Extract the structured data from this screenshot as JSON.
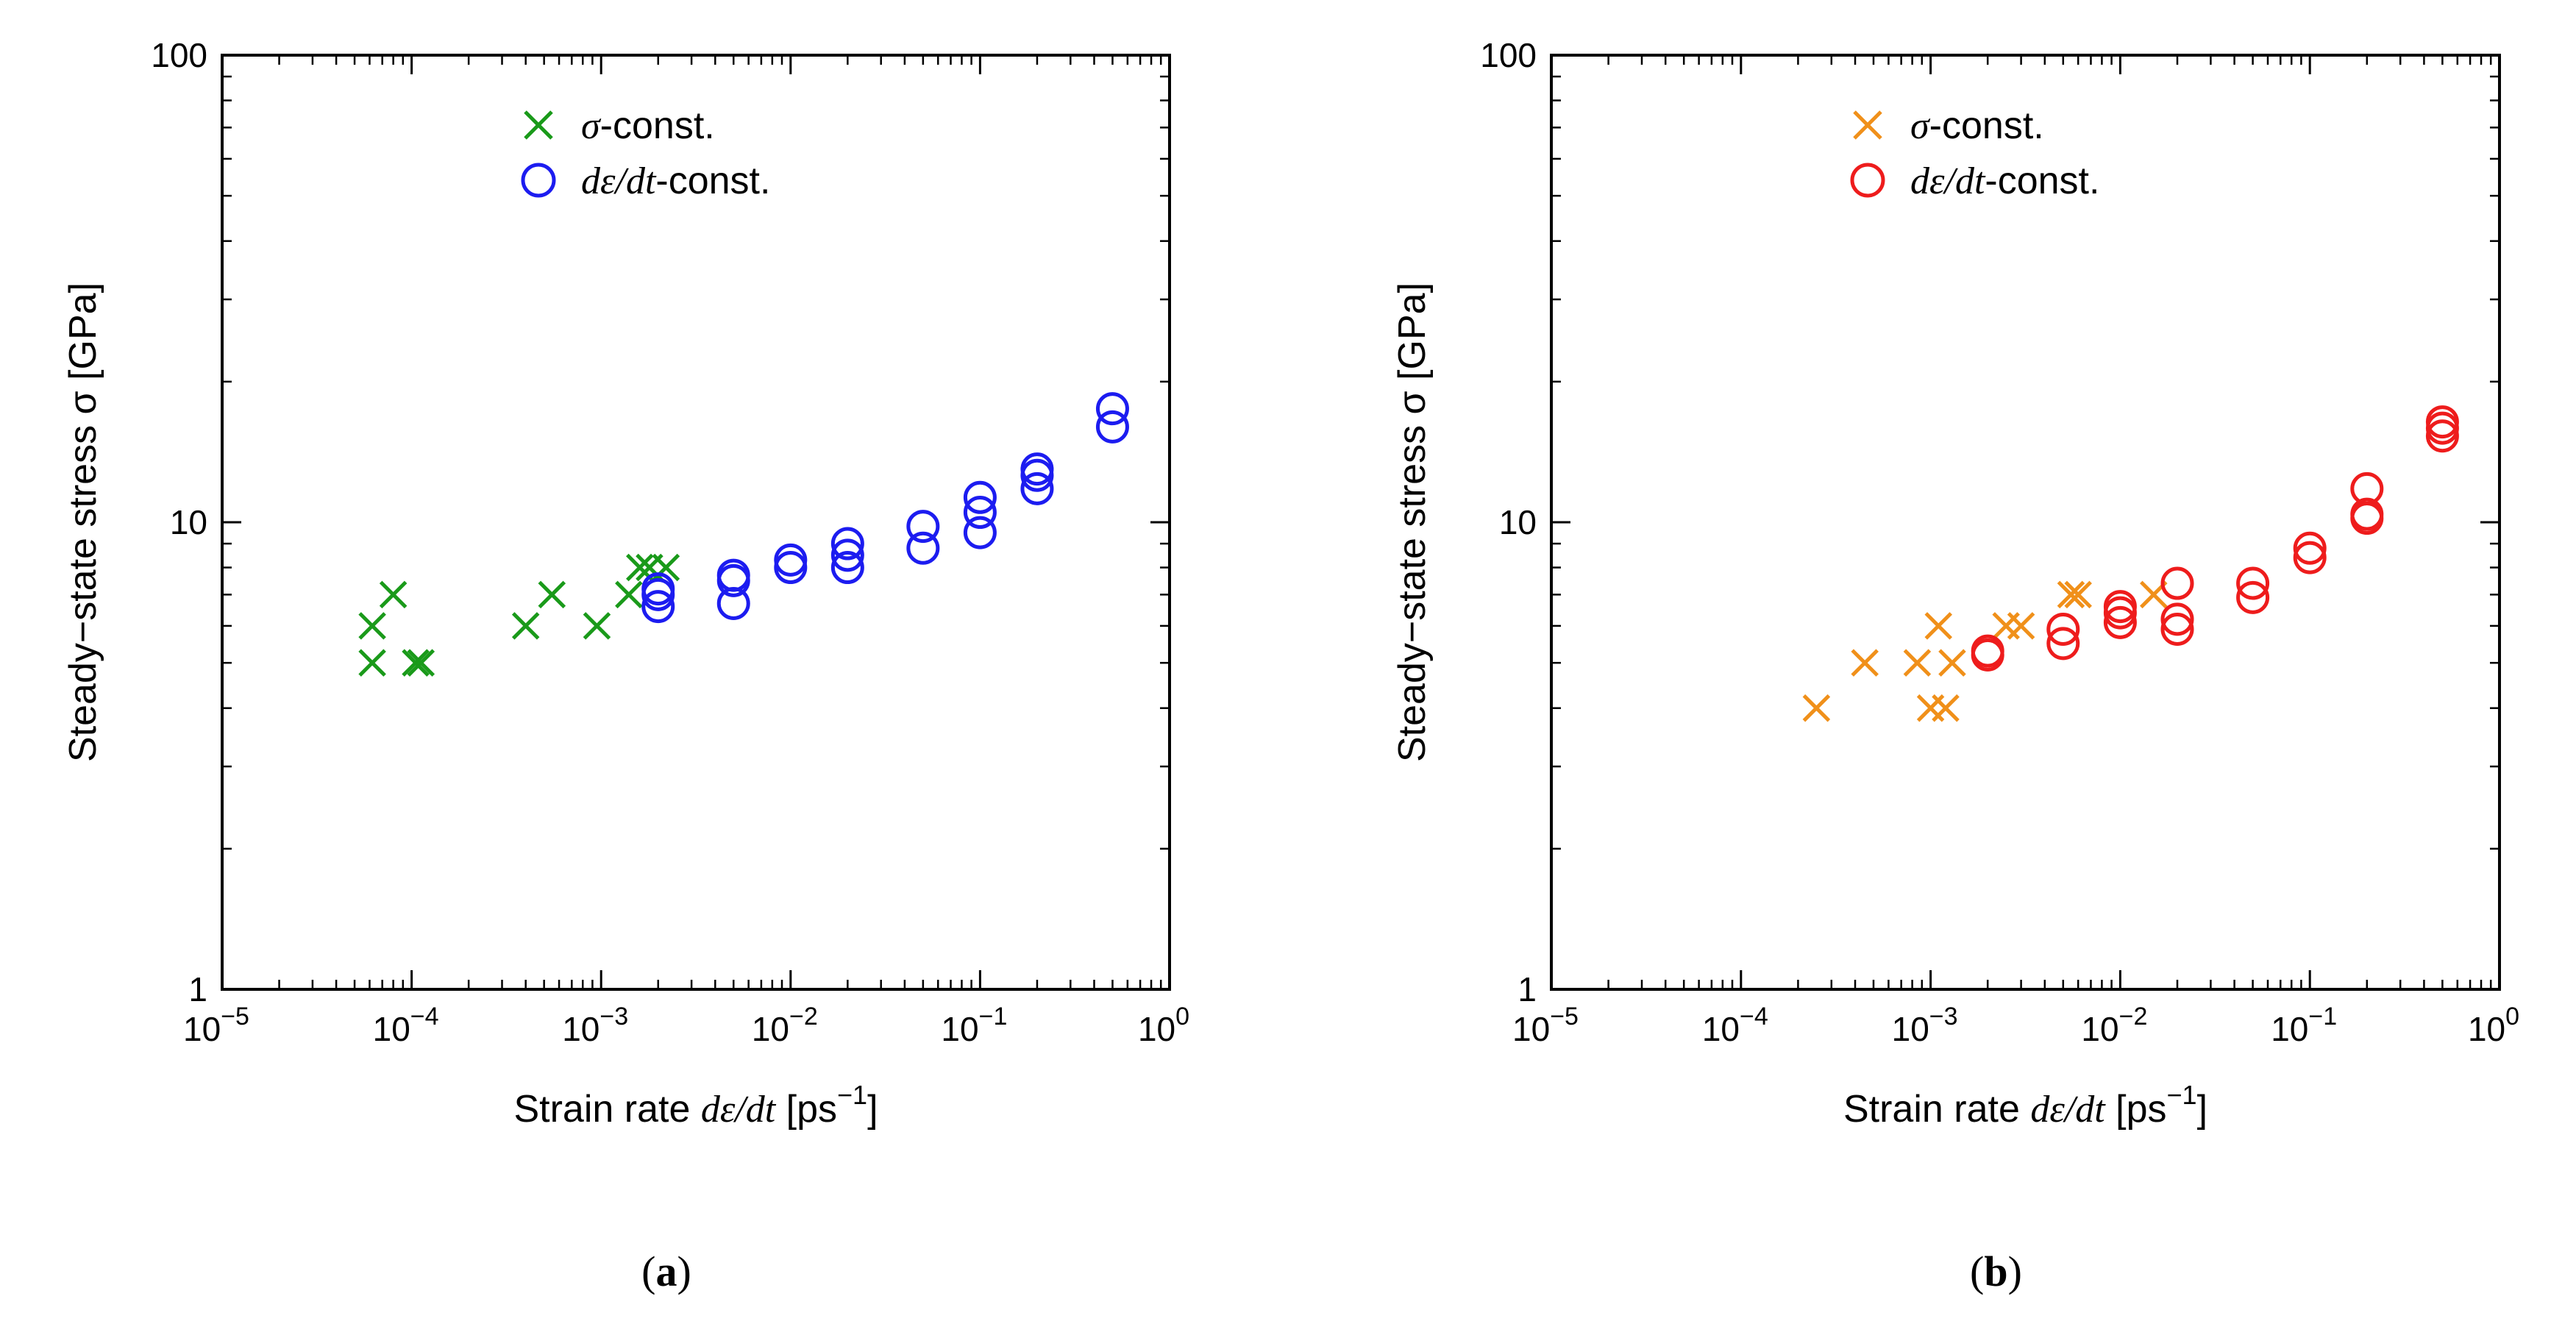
{
  "chart_data": [
    {
      "type": "scatter",
      "panel": "(a)",
      "caption_open": "(",
      "caption_letter": "a",
      "caption_close": ")",
      "xlabel": {
        "prefix": "Strain rate ",
        "italic": "dε/dt",
        "suffix": " [ps",
        "sup": "−1",
        "close": "]"
      },
      "ylabel": "Steady−state stress σ [GPa]",
      "xscale": "log",
      "yscale": "log",
      "xlim": [
        1e-05,
        1
      ],
      "ylim": [
        1,
        100
      ],
      "xticks": [
        {
          "base": "10",
          "exp": "−5"
        },
        {
          "base": "10",
          "exp": "−4"
        },
        {
          "base": "10",
          "exp": "−3"
        },
        {
          "base": "10",
          "exp": "−2"
        },
        {
          "base": "10",
          "exp": "−1"
        },
        {
          "base": "10",
          "exp": "0"
        }
      ],
      "yticks": [
        "1",
        "10",
        "100"
      ],
      "legend_position": "top-center",
      "series": [
        {
          "name": "σ-const.",
          "legend_italic": "σ",
          "legend_rest": "-const.",
          "marker": "x",
          "color": "#1a9a1a",
          "points": [
            [
              6.2e-05,
              5.0
            ],
            [
              6.2e-05,
              6.0
            ],
            [
              8e-05,
              7.0
            ],
            [
              0.000105,
              5.0
            ],
            [
              0.000112,
              5.0
            ],
            [
              0.0004,
              6.0
            ],
            [
              0.00055,
              7.0
            ],
            [
              0.00095,
              6.0
            ],
            [
              0.0014,
              7.0
            ],
            [
              0.0016,
              8.0
            ],
            [
              0.0018,
              8.0
            ],
            [
              0.0022,
              8.0
            ]
          ]
        },
        {
          "name": "dε/dt-const.",
          "legend_italic": "dε/dt",
          "legend_rest": "-const.",
          "marker": "o",
          "color": "#1c1cf0",
          "points": [
            [
              0.002,
              6.6
            ],
            [
              0.002,
              7.0
            ],
            [
              0.002,
              7.2
            ],
            [
              0.005,
              6.7
            ],
            [
              0.005,
              7.5
            ],
            [
              0.005,
              7.7
            ],
            [
              0.01,
              8.0
            ],
            [
              0.01,
              8.3
            ],
            [
              0.02,
              8.0
            ],
            [
              0.02,
              8.5
            ],
            [
              0.02,
              9.0
            ],
            [
              0.05,
              8.8
            ],
            [
              0.05,
              9.8
            ],
            [
              0.1,
              9.5
            ],
            [
              0.1,
              10.5
            ],
            [
              0.1,
              11.3
            ],
            [
              0.2,
              11.8
            ],
            [
              0.2,
              12.6
            ],
            [
              0.2,
              13.0
            ],
            [
              0.5,
              16.0
            ],
            [
              0.5,
              17.5
            ]
          ]
        }
      ]
    },
    {
      "type": "scatter",
      "panel": "(b)",
      "caption_open": "(",
      "caption_letter": "b",
      "caption_close": ")",
      "xlabel": {
        "prefix": "Strain rate ",
        "italic": "dε/dt",
        "suffix": " [ps",
        "sup": "−1",
        "close": "]"
      },
      "ylabel": "Steady−state stress σ [GPa]",
      "xscale": "log",
      "yscale": "log",
      "xlim": [
        1e-05,
        1
      ],
      "ylim": [
        1,
        100
      ],
      "xticks": [
        {
          "base": "10",
          "exp": "−5"
        },
        {
          "base": "10",
          "exp": "−4"
        },
        {
          "base": "10",
          "exp": "−3"
        },
        {
          "base": "10",
          "exp": "−2"
        },
        {
          "base": "10",
          "exp": "−1"
        },
        {
          "base": "10",
          "exp": "0"
        }
      ],
      "yticks": [
        "1",
        "10",
        "100"
      ],
      "legend_position": "top-center",
      "series": [
        {
          "name": "σ-const.",
          "legend_italic": "σ",
          "legend_rest": "-const.",
          "marker": "x",
          "color": "#f0901a",
          "points": [
            [
              0.00025,
              4.0
            ],
            [
              0.00045,
              5.0
            ],
            [
              0.00085,
              5.0
            ],
            [
              0.001,
              4.0
            ],
            [
              0.0011,
              6.0
            ],
            [
              0.0012,
              4.0
            ],
            [
              0.0013,
              5.0
            ],
            [
              0.0025,
              6.0
            ],
            [
              0.003,
              6.0
            ],
            [
              0.0055,
              7.0
            ],
            [
              0.006,
              7.0
            ],
            [
              0.015,
              7.0
            ]
          ]
        },
        {
          "name": "dε/dt-const.",
          "legend_italic": "dε/dt",
          "legend_rest": "-const.",
          "marker": "o",
          "color": "#ee1c1c",
          "points": [
            [
              0.002,
              5.2
            ],
            [
              0.002,
              5.3
            ],
            [
              0.005,
              5.5
            ],
            [
              0.005,
              5.9
            ],
            [
              0.01,
              6.1
            ],
            [
              0.01,
              6.4
            ],
            [
              0.01,
              6.6
            ],
            [
              0.02,
              5.9
            ],
            [
              0.02,
              6.2
            ],
            [
              0.02,
              7.4
            ],
            [
              0.05,
              6.9
            ],
            [
              0.05,
              7.4
            ],
            [
              0.1,
              8.4
            ],
            [
              0.1,
              8.8
            ],
            [
              0.2,
              10.2
            ],
            [
              0.2,
              10.4
            ],
            [
              0.2,
              11.8
            ],
            [
              0.5,
              15.3
            ],
            [
              0.5,
              15.9
            ],
            [
              0.5,
              16.4
            ]
          ]
        }
      ]
    }
  ]
}
